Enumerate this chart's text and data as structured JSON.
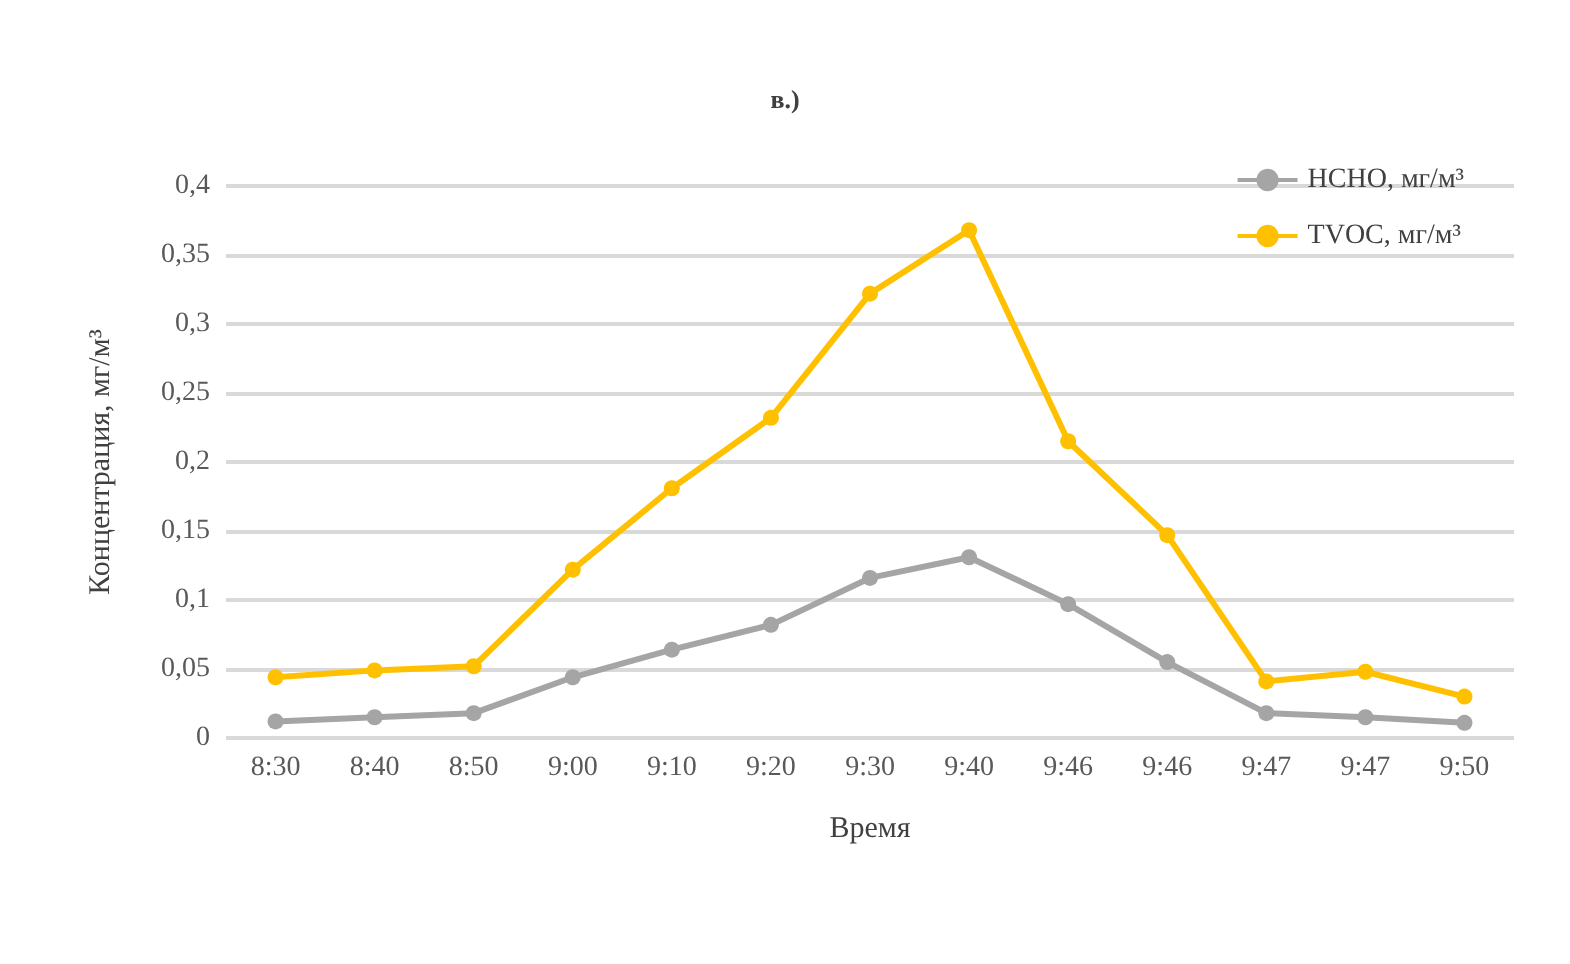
{
  "chart_data": {
    "type": "line",
    "title": "в.)",
    "xlabel": "Время",
    "ylabel": "Концентрация, мг/м³",
    "categories": [
      "8:30",
      "8:40",
      "8:50",
      "9:00",
      "9:10",
      "9:20",
      "9:30",
      "9:40",
      "9:46",
      "9:46",
      "9:47",
      "9:47",
      "9:50"
    ],
    "series": [
      {
        "name": "HCHO, мг/м³",
        "color": "#a5a5a5",
        "values": [
          0.012,
          0.015,
          0.018,
          0.044,
          0.064,
          0.082,
          0.116,
          0.131,
          0.097,
          0.055,
          0.018,
          0.015,
          0.011
        ]
      },
      {
        "name": "TVOC, мг/м³",
        "color": "#ffc000",
        "values": [
          0.044,
          0.049,
          0.052,
          0.122,
          0.181,
          0.232,
          0.322,
          0.368,
          0.215,
          0.147,
          0.041,
          0.048,
          0.03
        ]
      }
    ],
    "ylim": [
      0,
      0.4
    ],
    "yticks": [
      {
        "value": 0,
        "label": "0"
      },
      {
        "value": 0.05,
        "label": "0,05"
      },
      {
        "value": 0.1,
        "label": "0,1"
      },
      {
        "value": 0.15,
        "label": "0,15"
      },
      {
        "value": 0.2,
        "label": "0,2"
      },
      {
        "value": 0.25,
        "label": "0,25"
      },
      {
        "value": 0.3,
        "label": "0,3"
      },
      {
        "value": 0.35,
        "label": "0,35"
      },
      {
        "value": 0.4,
        "label": "0,4"
      }
    ],
    "grid": "y",
    "legend": "top right",
    "marker": "circle",
    "line_style": "solid"
  }
}
